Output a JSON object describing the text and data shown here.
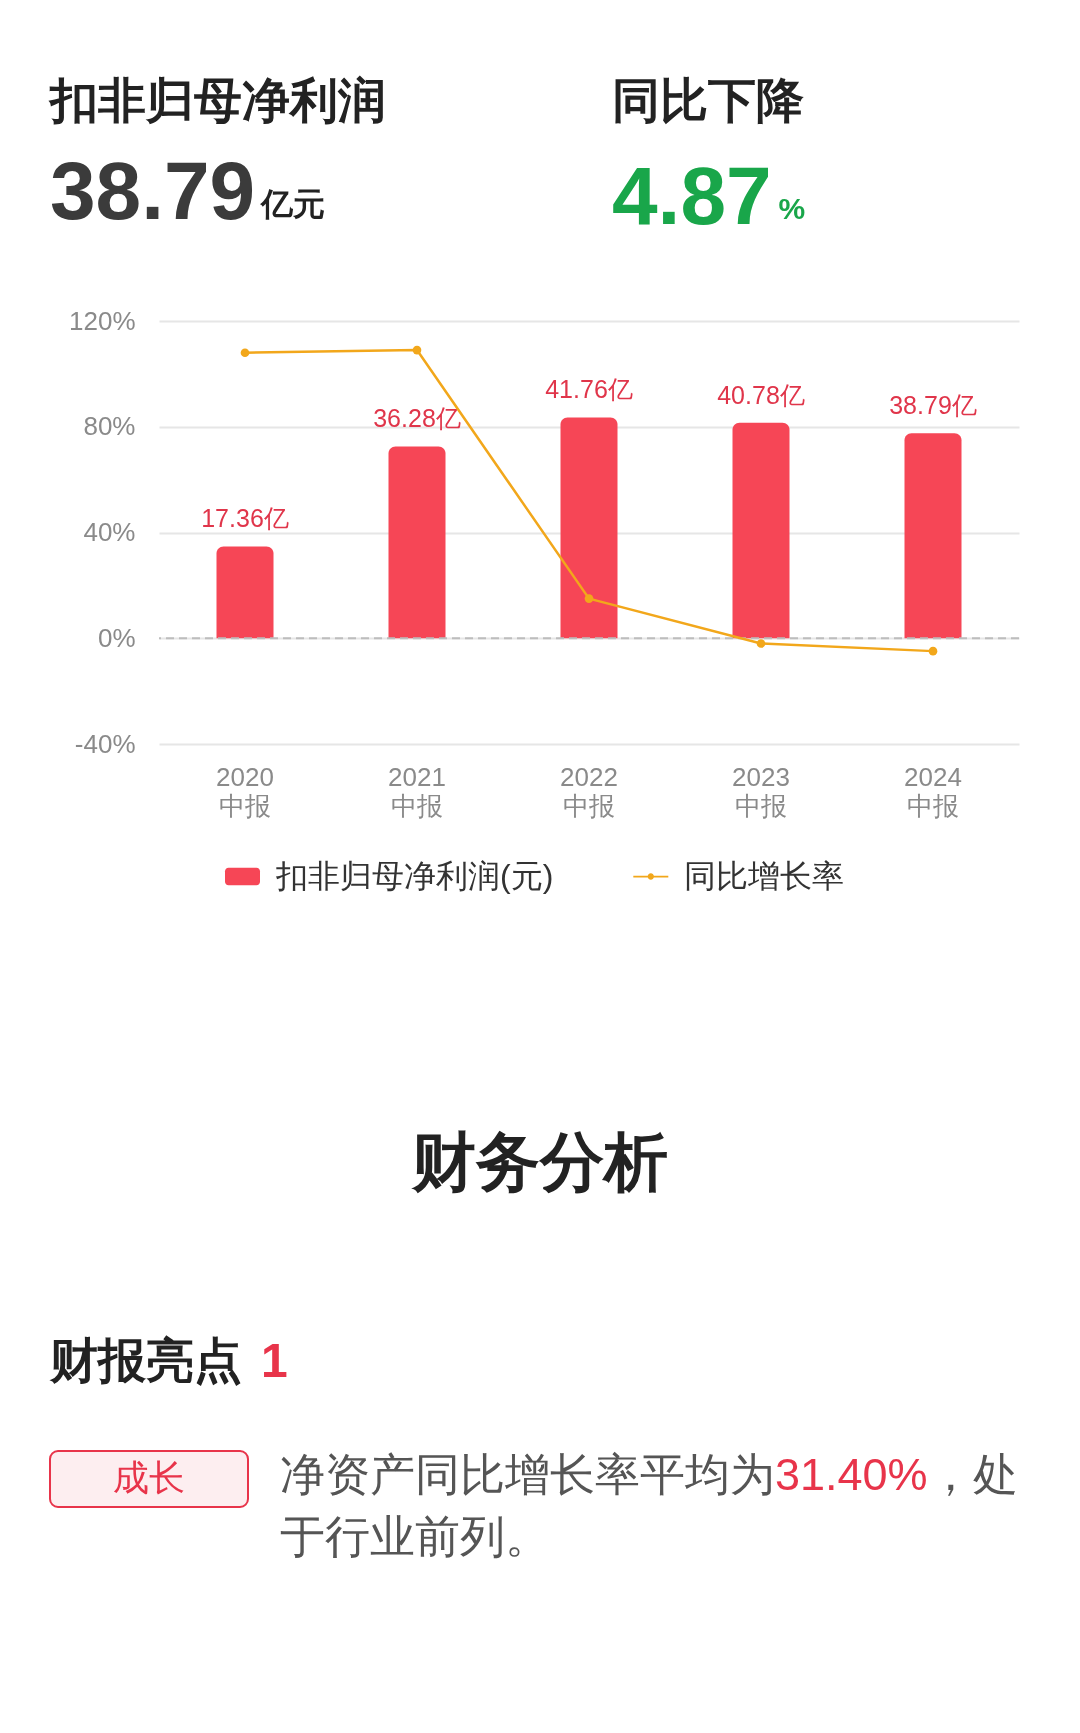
{
  "chart_data": [
    {
      "type": "bar",
      "title": "扣非归母净利润",
      "annotations": [
        "38.79",
        "亿元",
        "同比下降",
        "4.87",
        "%"
      ],
      "categories": [
        "2020\n中报",
        "2021\n中报",
        "2022\n中报",
        "2023\n中报",
        "2024\n中报"
      ],
      "series": [
        {
          "name": "扣非归母净利润(元)",
          "type": "bar",
          "axis": "y2",
          "color": "#f64656",
          "values": [
            17.36,
            36.28,
            41.76,
            40.78,
            38.79
          ],
          "value_labels": [
            "17.36亿",
            "36.28亿",
            "41.76亿",
            "40.78亿",
            "38.79亿"
          ]
        },
        {
          "name": "同比增长率",
          "type": "line",
          "color": "#f2a71b",
          "marker": "circle",
          "values": [
            108,
            109,
            15,
            -2,
            -4.87
          ]
        }
      ],
      "ylim": [
        -40,
        120
      ],
      "yticks": [
        {
          "value": -40,
          "label": "-40%"
        },
        {
          "value": 0,
          "label": "0%"
        },
        {
          "value": 40,
          "label": "40%"
        },
        {
          "value": 80,
          "label": "80%"
        },
        {
          "value": 120,
          "label": "120%"
        }
      ],
      "y2lim": [
        -20,
        60
      ],
      "grid": "y",
      "legend": "bottom",
      "ref_lines": [
        {
          "axis": "y",
          "value": 0,
          "color": "#bdbdbd",
          "line_style": "dashed"
        }
      ]
    },
    {
      "type": "other",
      "title": "财务分析",
      "annotations": [
        "财报亮点",
        "1",
        "成长",
        "净资产同比增长率平均为",
        "31.40%",
        "，处",
        "于行业前列。"
      ]
    }
  ]
}
